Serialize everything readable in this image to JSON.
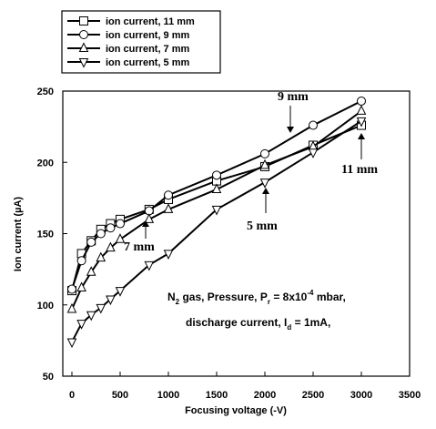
{
  "chart_data": {
    "type": "line",
    "xlabel": "Focusing voltage (-V)",
    "ylabel": "Ion current (µA)",
    "xlim": [
      0,
      3500
    ],
    "ylim": [
      50,
      250
    ],
    "xticks": [
      "0",
      "500",
      "1000",
      "1500",
      "2000",
      "2500",
      "3000",
      "3500"
    ],
    "yticks": [
      "50",
      "100",
      "150",
      "200",
      "250"
    ],
    "grid": false,
    "legend_position": "top-left",
    "series": [
      {
        "name": "ion current, 11 mm",
        "marker": "square",
        "x": [
          0,
          100,
          200,
          300,
          400,
          500,
          800,
          1000,
          1500,
          2000,
          2500,
          3000
        ],
        "y": [
          110,
          136,
          145,
          153,
          157,
          160,
          167,
          174,
          187,
          197,
          212,
          226
        ]
      },
      {
        "name": "ion current, 9 mm",
        "marker": "circle",
        "x": [
          0,
          100,
          200,
          300,
          400,
          500,
          800,
          1000,
          1500,
          2000,
          2500,
          3000
        ],
        "y": [
          111,
          131,
          144,
          150,
          154,
          157,
          166,
          177,
          191,
          206,
          226,
          243
        ]
      },
      {
        "name": "ion current, 7 mm",
        "marker": "triangle-up",
        "x": [
          0,
          100,
          200,
          300,
          400,
          500,
          800,
          1000,
          1500,
          2000,
          2500,
          3000
        ],
        "y": [
          97,
          112,
          123,
          133,
          140,
          146,
          160,
          167,
          181,
          198,
          211,
          236
        ]
      },
      {
        "name": "ion current, 5 mm",
        "marker": "triangle-down",
        "x": [
          0,
          100,
          200,
          300,
          400,
          500,
          800,
          1000,
          1500,
          2000,
          2500,
          3000
        ],
        "y": [
          74,
          87,
          93,
          98,
          104,
          110,
          128,
          136,
          167,
          186,
          207,
          229
        ]
      }
    ],
    "annotations": {
      "label_9mm": "9 mm",
      "label_11mm": "11 mm",
      "label_7mm": "7 mm",
      "label_5mm": "5 mm",
      "note_line1_pre": "N",
      "note_line1_sub": "2",
      "note_line1_mid": " gas, Pressure, P",
      "note_line1_sub2": "r",
      "note_line1_post": " = 8x10",
      "note_line1_sup": "-4",
      "note_line1_end": " mbar,",
      "note_line2_pre": "discharge current, I",
      "note_line2_sub": "d",
      "note_line2_post": " = 1mA,"
    }
  }
}
